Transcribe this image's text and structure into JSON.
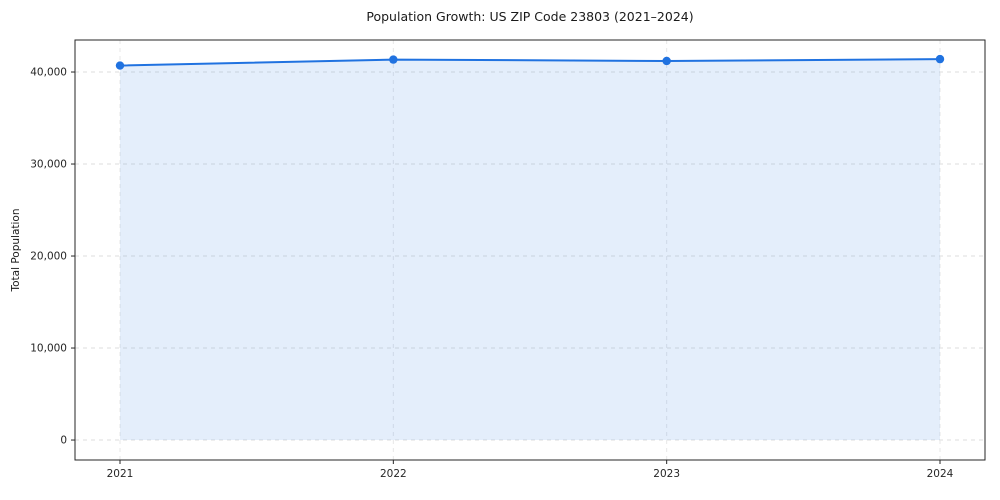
{
  "chart_data": {
    "type": "area",
    "title": "Population Growth: US ZIP Code 23803 (2021–2024)",
    "xlabel": "",
    "ylabel": "Total Population",
    "x": [
      2021,
      2022,
      2023,
      2024
    ],
    "xtick_labels": [
      "2021",
      "2022",
      "2023",
      "2024"
    ],
    "series": [
      {
        "name": "Total Population",
        "values": [
          40700,
          41350,
          41200,
          41400
        ]
      }
    ],
    "yticks": [
      0,
      10000,
      20000,
      30000,
      40000
    ],
    "ytick_labels": [
      "0",
      "10,000",
      "20,000",
      "30,000",
      "40,000"
    ],
    "ylim": [
      -2170,
      43480
    ],
    "grid": true,
    "legend": "none",
    "colors": {
      "line": "#2072e0",
      "marker": "#2072e0",
      "area_fill": "rgba(32,114,224,0.12)",
      "grid_h": "#dedede",
      "grid_v": "#e7e7e7",
      "axis": "#262626",
      "text": "#262626"
    }
  }
}
